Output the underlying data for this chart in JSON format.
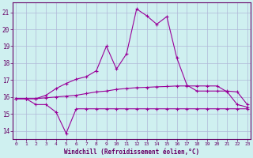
{
  "xlabel": "Windchill (Refroidissement éolien,°C)",
  "x_ticks": [
    0,
    1,
    2,
    3,
    4,
    5,
    6,
    7,
    8,
    9,
    10,
    11,
    12,
    13,
    14,
    15,
    16,
    17,
    18,
    19,
    20,
    21,
    22,
    23
  ],
  "y_ticks": [
    14,
    15,
    16,
    17,
    18,
    19,
    20,
    21
  ],
  "ylim": [
    13.5,
    21.6
  ],
  "xlim": [
    -0.3,
    23.3
  ],
  "line1_x": [
    0,
    1,
    2,
    3,
    4,
    5,
    6,
    7,
    8,
    9,
    10,
    11,
    12,
    13,
    14,
    15,
    16,
    17,
    18,
    19,
    20,
    21,
    22,
    23
  ],
  "line1_y": [
    15.9,
    15.9,
    15.55,
    15.55,
    15.1,
    13.85,
    15.3,
    15.3,
    15.3,
    15.3,
    15.3,
    15.3,
    15.3,
    15.3,
    15.3,
    15.3,
    15.3,
    15.3,
    15.3,
    15.3,
    15.3,
    15.3,
    15.3,
    15.3
  ],
  "line2_x": [
    0,
    1,
    2,
    3,
    4,
    5,
    6,
    7,
    8,
    9,
    10,
    11,
    12,
    13,
    14,
    15,
    16,
    17,
    18,
    19,
    20,
    21,
    22,
    23
  ],
  "line2_y": [
    15.9,
    15.9,
    15.9,
    15.95,
    16.0,
    16.05,
    16.1,
    16.2,
    16.3,
    16.35,
    16.45,
    16.5,
    16.55,
    16.57,
    16.6,
    16.62,
    16.65,
    16.65,
    16.65,
    16.65,
    16.65,
    16.3,
    15.55,
    15.4
  ],
  "line3_x": [
    0,
    1,
    2,
    3,
    4,
    5,
    6,
    7,
    8,
    9,
    10,
    11,
    12,
    13,
    14,
    15,
    16,
    17,
    18,
    19,
    20,
    21,
    22,
    23
  ],
  "line3_y": [
    15.9,
    15.9,
    15.9,
    16.1,
    16.5,
    16.8,
    17.05,
    17.2,
    17.55,
    19.0,
    17.65,
    18.55,
    21.2,
    20.8,
    20.3,
    20.75,
    18.3,
    16.7,
    16.35,
    16.35,
    16.35,
    16.35,
    16.3,
    15.55
  ],
  "line_color": "#990099",
  "bg_color": "#cff0f0",
  "grid_color": "#b0b8d8",
  "axis_color": "#660066",
  "tick_label_color": "#660066"
}
